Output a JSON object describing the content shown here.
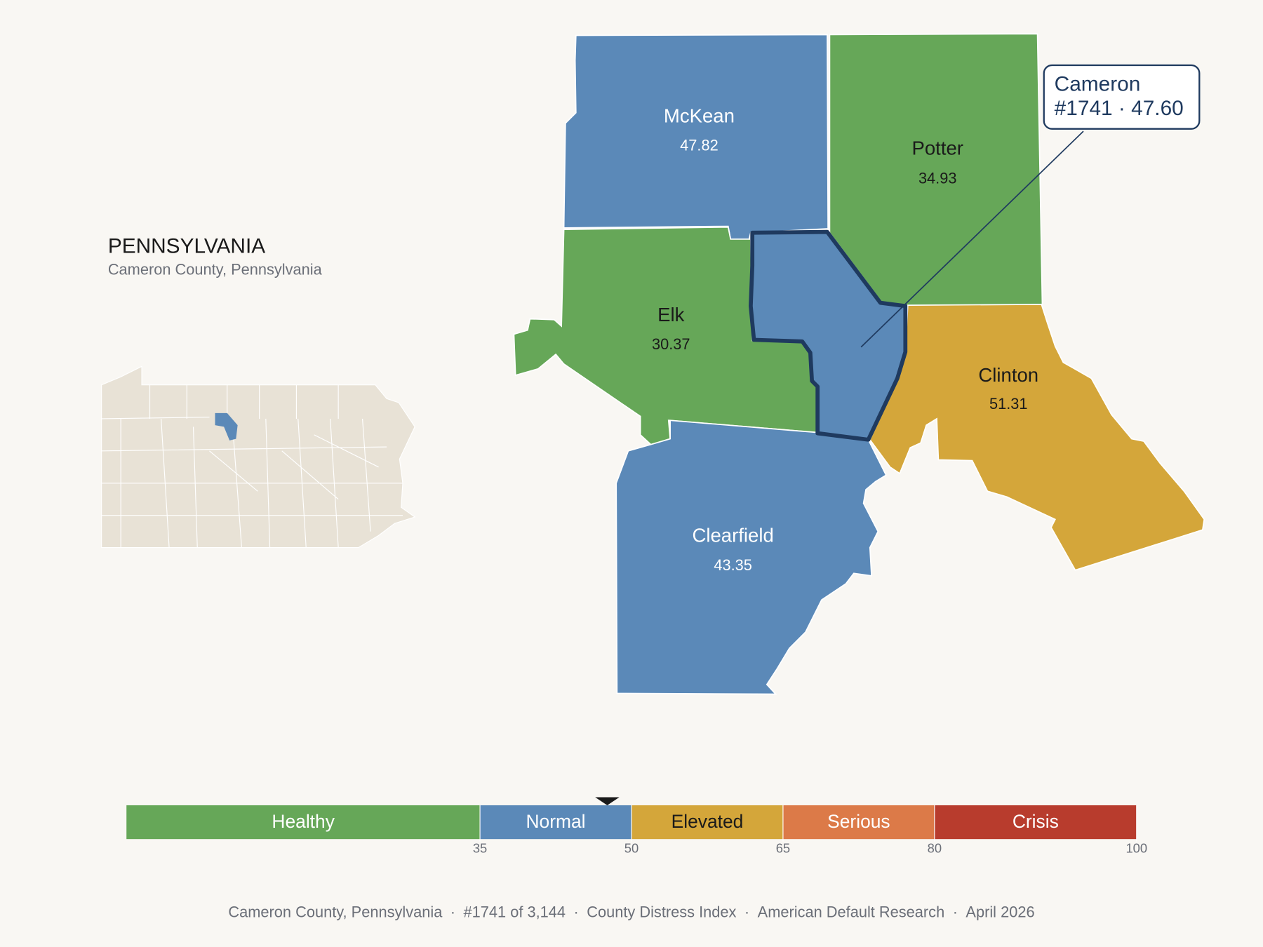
{
  "header": {
    "title": "PENNSYLVANIA",
    "subtitle": "Cameron County, Pennsylvania"
  },
  "counties": [
    {
      "name": "McKean",
      "value": 47.82,
      "color": "#5b89b8"
    },
    {
      "name": "Potter",
      "value": 34.93,
      "color": "#66a758"
    },
    {
      "name": "Elk",
      "value": 30.37,
      "color": "#66a758"
    },
    {
      "name": "Clinton",
      "value": 51.31,
      "color": "#d4a63a"
    },
    {
      "name": "Clearfield",
      "value": 43.35,
      "color": "#5b89b8"
    },
    {
      "name": "Cameron",
      "color": "#5b89b8"
    }
  ],
  "callout": {
    "name": "Cameron",
    "detail": "#1741 · 47.60"
  },
  "legend": {
    "xlim": [
      0,
      100
    ],
    "ticks": [
      35,
      50,
      65,
      80,
      100
    ],
    "marker": 47.6,
    "bands": [
      {
        "label": "Healthy",
        "color": "#66a758"
      },
      {
        "label": "Normal",
        "color": "#5b89b8"
      },
      {
        "label": "Elevated",
        "color": "#d4a63a"
      },
      {
        "label": "Serious",
        "color": "#dc7a48"
      },
      {
        "label": "Crisis",
        "color": "#b83c2d"
      }
    ]
  },
  "footer": {
    "items": [
      "Cameron County, Pennsylvania",
      "#1741 of 3,144",
      "County Distress Index",
      "American Default Research",
      "April 2026"
    ],
    "separator": "·"
  }
}
